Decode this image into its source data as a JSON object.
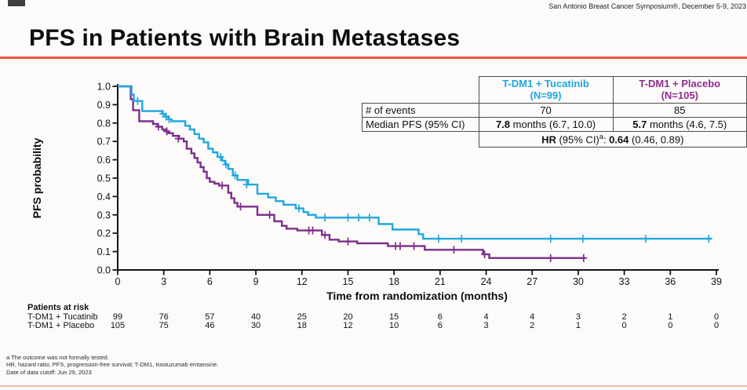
{
  "header": {
    "symposium": "San Antonio Breast Cancer Symposium®, December 5-9, 2023"
  },
  "title": "PFS in Patients with Brain Metastases",
  "colors": {
    "tucatinib": "#1FA7E0",
    "placebo": "#7C2E8C",
    "title_rule": "#E85A3C",
    "footer_rule": "#F3BDA9",
    "axis": "#141414",
    "table_border": "#4d4d4d"
  },
  "results_table": {
    "col_tucatinib": {
      "line1": "T-DM1 + Tucatinib",
      "line2": "(N=99)"
    },
    "col_placebo": {
      "line1": "T-DM1 + Placebo",
      "line2": "(N=105)"
    },
    "rows": {
      "events_label": "# of events",
      "events_tucatinib": "70",
      "events_placebo": "85",
      "median_label": "Median PFS (95% CI)",
      "median_tucatinib_bold": "7.8",
      "median_tucatinib_rest": " months (6.7, 10.0)",
      "median_placebo_bold": "5.7",
      "median_placebo_rest": " months (4.6, 7.5)"
    },
    "hr": {
      "bold1": "HR",
      "mid": " (95% CI)",
      "sup": "a",
      "sep": ": ",
      "bold2": "0.64",
      "rest": " (0.46, 0.89)"
    }
  },
  "chart_data": {
    "type": "line",
    "subtype": "kaplan-meier-step",
    "title": "",
    "xlabel": "Time from randomization (months)",
    "ylabel": "PFS probability",
    "xlim": [
      0,
      39
    ],
    "ylim": [
      0,
      1
    ],
    "xticks": [
      0,
      3,
      6,
      9,
      12,
      15,
      18,
      21,
      24,
      27,
      30,
      33,
      36,
      39
    ],
    "ytick_values": [
      0.0,
      0.1,
      0.2,
      0.3,
      0.4,
      0.5,
      0.6,
      0.7,
      0.8,
      0.9,
      1.0
    ],
    "ytick_labels": [
      "0.0",
      "0.1",
      "0.2",
      "0.3",
      "0.4",
      "0.5",
      "0.6",
      "0.7",
      "0.8",
      "0.9",
      "1.0"
    ],
    "grid": false,
    "legend": "none (identified in results table)",
    "series": [
      {
        "name": "T-DM1 + Tucatinib",
        "n": 99,
        "color": "#1FA7E0",
        "steps": [
          [
            0,
            1.0
          ],
          [
            0.9,
            0.955
          ],
          [
            1.05,
            0.92
          ],
          [
            1.6,
            0.865
          ],
          [
            2.9,
            0.85
          ],
          [
            3.1,
            0.835
          ],
          [
            3.3,
            0.82
          ],
          [
            3.5,
            0.81
          ],
          [
            4.4,
            0.785
          ],
          [
            4.7,
            0.765
          ],
          [
            5.0,
            0.74
          ],
          [
            5.3,
            0.715
          ],
          [
            5.6,
            0.695
          ],
          [
            5.9,
            0.66
          ],
          [
            6.2,
            0.64
          ],
          [
            6.5,
            0.615
          ],
          [
            6.8,
            0.595
          ],
          [
            7.0,
            0.575
          ],
          [
            7.2,
            0.55
          ],
          [
            7.5,
            0.515
          ],
          [
            7.8,
            0.49
          ],
          [
            8.5,
            0.465
          ],
          [
            9.1,
            0.415
          ],
          [
            9.8,
            0.395
          ],
          [
            10.3,
            0.375
          ],
          [
            10.8,
            0.355
          ],
          [
            11.6,
            0.335
          ],
          [
            12.1,
            0.315
          ],
          [
            12.4,
            0.3
          ],
          [
            12.9,
            0.285
          ],
          [
            17.0,
            0.25
          ],
          [
            17.9,
            0.22
          ],
          [
            19.6,
            0.195
          ],
          [
            19.9,
            0.17
          ],
          [
            38.7,
            0.17
          ]
        ],
        "censors": [
          [
            1.3,
            0.92
          ],
          [
            2.95,
            0.85
          ],
          [
            3.15,
            0.835
          ],
          [
            3.35,
            0.82
          ],
          [
            6.7,
            0.615
          ],
          [
            7.05,
            0.575
          ],
          [
            7.65,
            0.515
          ],
          [
            8.4,
            0.465
          ],
          [
            11.8,
            0.335
          ],
          [
            13.5,
            0.285
          ],
          [
            15.0,
            0.285
          ],
          [
            15.7,
            0.285
          ],
          [
            16.4,
            0.285
          ],
          [
            20.9,
            0.17
          ],
          [
            22.4,
            0.17
          ],
          [
            28.2,
            0.17
          ],
          [
            30.3,
            0.17
          ],
          [
            34.4,
            0.17
          ],
          [
            38.5,
            0.17
          ]
        ]
      },
      {
        "name": "T-DM1 + Placebo",
        "n": 105,
        "color": "#7C2E8C",
        "steps": [
          [
            0,
            1.0
          ],
          [
            0.85,
            0.93
          ],
          [
            1.0,
            0.87
          ],
          [
            1.4,
            0.81
          ],
          [
            2.3,
            0.795
          ],
          [
            2.6,
            0.78
          ],
          [
            2.9,
            0.765
          ],
          [
            3.1,
            0.755
          ],
          [
            3.3,
            0.745
          ],
          [
            3.6,
            0.73
          ],
          [
            4.0,
            0.715
          ],
          [
            4.3,
            0.7
          ],
          [
            4.5,
            0.66
          ],
          [
            4.8,
            0.635
          ],
          [
            5.0,
            0.61
          ],
          [
            5.2,
            0.585
          ],
          [
            5.4,
            0.56
          ],
          [
            5.6,
            0.535
          ],
          [
            5.8,
            0.5
          ],
          [
            6.0,
            0.48
          ],
          [
            6.3,
            0.47
          ],
          [
            6.6,
            0.46
          ],
          [
            7.2,
            0.42
          ],
          [
            7.4,
            0.39
          ],
          [
            7.6,
            0.365
          ],
          [
            7.8,
            0.345
          ],
          [
            9.1,
            0.3
          ],
          [
            10.2,
            0.265
          ],
          [
            10.7,
            0.24
          ],
          [
            11.0,
            0.225
          ],
          [
            11.7,
            0.215
          ],
          [
            13.3,
            0.19
          ],
          [
            13.8,
            0.165
          ],
          [
            14.4,
            0.155
          ],
          [
            15.6,
            0.145
          ],
          [
            17.6,
            0.13
          ],
          [
            20.0,
            0.11
          ],
          [
            23.8,
            0.085
          ],
          [
            24.2,
            0.065
          ],
          [
            30.45,
            0.065
          ]
        ],
        "censors": [
          [
            2.65,
            0.78
          ],
          [
            3.2,
            0.755
          ],
          [
            3.95,
            0.715
          ],
          [
            6.8,
            0.46
          ],
          [
            8.0,
            0.345
          ],
          [
            9.9,
            0.3
          ],
          [
            12.45,
            0.215
          ],
          [
            12.7,
            0.215
          ],
          [
            13.5,
            0.19
          ],
          [
            15.0,
            0.155
          ],
          [
            18.1,
            0.13
          ],
          [
            18.4,
            0.13
          ],
          [
            19.3,
            0.13
          ],
          [
            21.9,
            0.11
          ],
          [
            23.9,
            0.085
          ],
          [
            28.2,
            0.065
          ],
          [
            30.35,
            0.065
          ]
        ]
      }
    ]
  },
  "risk_table": {
    "title": "Patients at risk",
    "timepoints": [
      0,
      3,
      6,
      9,
      12,
      15,
      18,
      21,
      24,
      27,
      30,
      33,
      36,
      39
    ],
    "rows": [
      {
        "label": "T-DM1 + Tucatinib",
        "counts": [
          "99",
          "76",
          "57",
          "40",
          "25",
          "20",
          "15",
          "6",
          "4",
          "4",
          "3",
          "2",
          "1",
          "0"
        ]
      },
      {
        "label": "T-DM1 + Placebo",
        "counts": [
          "105",
          "75",
          "46",
          "30",
          "18",
          "12",
          "10",
          "6",
          "3",
          "2",
          "1",
          "0",
          "0",
          "0"
        ]
      }
    ]
  },
  "footnotes": [
    "a The outcome was not formally tested.",
    "HR, hazard ratio; PFS, progression-free survival; T-DM1, trastuzumab emtansine.",
    "Date of data cutoff: Jun 29, 2023"
  ]
}
